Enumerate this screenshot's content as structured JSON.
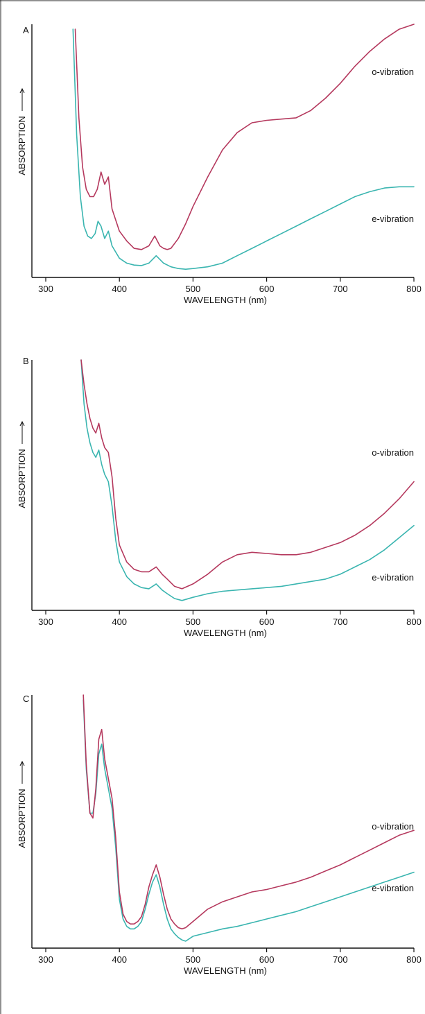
{
  "chart_data": [
    {
      "type": "line",
      "panel": "A",
      "xlabel": "WAVELENGTH (nm)",
      "ylabel": "ABSORPTION",
      "xlim": [
        280,
        800
      ],
      "ylim": [
        0,
        1
      ],
      "xticks": [
        300,
        400,
        500,
        600,
        700,
        800
      ],
      "grid": false,
      "series": [
        {
          "name": "o-vibration",
          "color": "#b5395e",
          "x": [
            340,
            345,
            350,
            355,
            360,
            365,
            370,
            375,
            380,
            385,
            390,
            400,
            410,
            420,
            430,
            440,
            448,
            455,
            460,
            465,
            470,
            480,
            490,
            500,
            520,
            540,
            560,
            580,
            600,
            620,
            640,
            660,
            680,
            700,
            720,
            740,
            760,
            780,
            800
          ],
          "y": [
            0.98,
            0.62,
            0.42,
            0.33,
            0.3,
            0.3,
            0.33,
            0.4,
            0.35,
            0.38,
            0.25,
            0.16,
            0.12,
            0.09,
            0.085,
            0.1,
            0.14,
            0.1,
            0.09,
            0.085,
            0.09,
            0.13,
            0.19,
            0.26,
            0.38,
            0.49,
            0.56,
            0.6,
            0.61,
            0.615,
            0.62,
            0.65,
            0.7,
            0.76,
            0.83,
            0.89,
            0.94,
            0.98,
            1.0
          ]
        },
        {
          "name": "e-vibration",
          "color": "#3ab5b0",
          "x": [
            337,
            342,
            347,
            352,
            357,
            362,
            367,
            371,
            375,
            380,
            385,
            390,
            400,
            410,
            420,
            430,
            440,
            450,
            460,
            470,
            480,
            490,
            500,
            520,
            540,
            560,
            580,
            600,
            620,
            640,
            660,
            680,
            700,
            720,
            740,
            760,
            780,
            800
          ],
          "y": [
            0.98,
            0.55,
            0.3,
            0.18,
            0.14,
            0.13,
            0.15,
            0.2,
            0.18,
            0.13,
            0.16,
            0.1,
            0.05,
            0.03,
            0.022,
            0.02,
            0.03,
            0.06,
            0.03,
            0.015,
            0.008,
            0.005,
            0.008,
            0.015,
            0.03,
            0.06,
            0.09,
            0.12,
            0.15,
            0.18,
            0.21,
            0.24,
            0.27,
            0.3,
            0.32,
            0.335,
            0.34,
            0.34
          ]
        }
      ]
    },
    {
      "type": "line",
      "panel": "B",
      "xlabel": "WAVELENGTH (nm)",
      "ylabel": "ABSORPTION",
      "xlim": [
        280,
        800
      ],
      "ylim": [
        0,
        1
      ],
      "xticks": [
        300,
        400,
        500,
        600,
        700,
        800
      ],
      "grid": false,
      "series": [
        {
          "name": "o-vibration",
          "color": "#b5395e",
          "x": [
            348,
            352,
            356,
            360,
            364,
            368,
            372,
            376,
            380,
            385,
            390,
            395,
            400,
            410,
            420,
            430,
            440,
            450,
            458,
            465,
            475,
            485,
            500,
            520,
            540,
            560,
            580,
            600,
            620,
            640,
            660,
            680,
            700,
            720,
            740,
            760,
            780,
            800
          ],
          "y": [
            1.0,
            0.9,
            0.82,
            0.76,
            0.72,
            0.7,
            0.74,
            0.68,
            0.64,
            0.62,
            0.52,
            0.35,
            0.24,
            0.17,
            0.14,
            0.13,
            0.13,
            0.15,
            0.12,
            0.1,
            0.07,
            0.06,
            0.08,
            0.12,
            0.17,
            0.2,
            0.21,
            0.205,
            0.2,
            0.2,
            0.21,
            0.23,
            0.25,
            0.28,
            0.32,
            0.37,
            0.43,
            0.5
          ]
        },
        {
          "name": "e-vibration",
          "color": "#3ab5b0",
          "x": [
            348,
            352,
            356,
            360,
            364,
            368,
            372,
            376,
            380,
            385,
            390,
            395,
            400,
            410,
            420,
            430,
            440,
            450,
            458,
            465,
            475,
            485,
            500,
            520,
            540,
            560,
            580,
            600,
            620,
            640,
            660,
            680,
            700,
            720,
            740,
            760,
            780,
            800
          ],
          "y": [
            1.0,
            0.82,
            0.72,
            0.66,
            0.62,
            0.6,
            0.63,
            0.57,
            0.53,
            0.5,
            0.4,
            0.26,
            0.17,
            0.11,
            0.08,
            0.065,
            0.06,
            0.08,
            0.055,
            0.04,
            0.02,
            0.012,
            0.025,
            0.04,
            0.05,
            0.055,
            0.06,
            0.065,
            0.07,
            0.08,
            0.09,
            0.1,
            0.12,
            0.15,
            0.18,
            0.22,
            0.27,
            0.32
          ]
        }
      ]
    },
    {
      "type": "line",
      "panel": "C",
      "xlabel": "WAVELENGTH (nm)",
      "ylabel": "ABSORPTION",
      "xlim": [
        280,
        800
      ],
      "ylim": [
        0,
        1
      ],
      "xticks": [
        300,
        400,
        500,
        600,
        700,
        800
      ],
      "grid": false,
      "series": [
        {
          "name": "o-vibration",
          "color": "#b5395e",
          "x": [
            351,
            355,
            360,
            364,
            368,
            372,
            376,
            380,
            385,
            390,
            395,
            400,
            405,
            410,
            415,
            420,
            425,
            430,
            435,
            440,
            445,
            450,
            455,
            460,
            465,
            470,
            475,
            480,
            485,
            490,
            500,
            520,
            540,
            560,
            580,
            600,
            620,
            640,
            660,
            680,
            700,
            720,
            740,
            760,
            780,
            800
          ],
          "y": [
            1.0,
            0.72,
            0.52,
            0.5,
            0.62,
            0.82,
            0.86,
            0.74,
            0.66,
            0.58,
            0.42,
            0.2,
            0.11,
            0.08,
            0.07,
            0.07,
            0.08,
            0.1,
            0.15,
            0.22,
            0.27,
            0.31,
            0.26,
            0.19,
            0.13,
            0.09,
            0.07,
            0.055,
            0.05,
            0.055,
            0.08,
            0.13,
            0.16,
            0.18,
            0.2,
            0.21,
            0.225,
            0.24,
            0.26,
            0.285,
            0.31,
            0.34,
            0.37,
            0.4,
            0.43,
            0.45
          ]
        },
        {
          "name": "e-vibration",
          "color": "#3ab5b0",
          "x": [
            351,
            355,
            360,
            364,
            368,
            372,
            376,
            380,
            385,
            390,
            395,
            400,
            405,
            410,
            415,
            420,
            425,
            430,
            435,
            440,
            445,
            450,
            455,
            460,
            465,
            470,
            475,
            480,
            485,
            490,
            500,
            520,
            540,
            560,
            580,
            600,
            620,
            640,
            660,
            680,
            700,
            720,
            740,
            760,
            780,
            800
          ],
          "y": [
            0.98,
            0.7,
            0.52,
            0.52,
            0.6,
            0.76,
            0.8,
            0.7,
            0.62,
            0.54,
            0.38,
            0.17,
            0.09,
            0.06,
            0.05,
            0.05,
            0.06,
            0.08,
            0.13,
            0.19,
            0.24,
            0.27,
            0.22,
            0.15,
            0.09,
            0.05,
            0.03,
            0.015,
            0.005,
            0.0,
            0.02,
            0.035,
            0.05,
            0.06,
            0.075,
            0.09,
            0.105,
            0.12,
            0.14,
            0.16,
            0.18,
            0.2,
            0.22,
            0.24,
            0.26,
            0.28
          ]
        }
      ]
    }
  ]
}
